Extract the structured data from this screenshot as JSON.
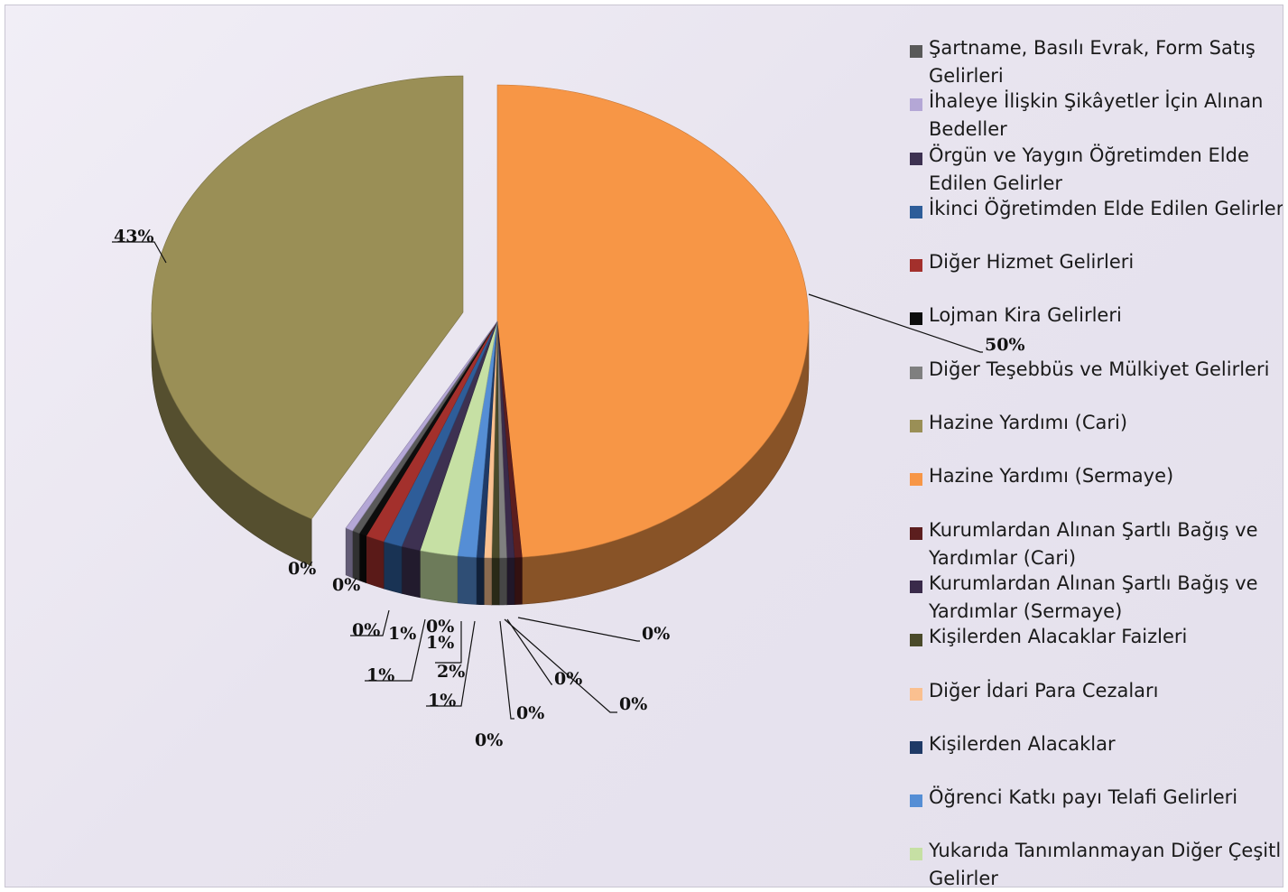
{
  "chart_data": {
    "type": "pie",
    "title": "",
    "legend_position": "right",
    "series": [
      {
        "name": "Şartname, Basılı Evrak, Form Satış Gelirleri",
        "value": 0,
        "label": "0%",
        "color": "#595959"
      },
      {
        "name": "İhaleye İlişkin Şikâyetler İçin Alınan Bedeller",
        "value": 0,
        "label": "0%",
        "color": "#b4a7d6"
      },
      {
        "name": "Örgün ve Yaygın Öğretimden Elde Edilen Gelirler",
        "value": 1,
        "label": "1%",
        "color": "#3d3151"
      },
      {
        "name": "İkinci Öğretimden Elde Edilen Gelirler",
        "value": 1,
        "label": "1%",
        "color": "#2e5d99"
      },
      {
        "name": "Diğer Hizmet Gelirleri",
        "value": 1,
        "label": "1%",
        "color": "#a3302c"
      },
      {
        "name": "Lojman Kira Gelirleri",
        "value": 0,
        "label": "0%",
        "color": "#0d0d0d"
      },
      {
        "name": "Diğer Teşebbüs ve Mülkiyet Gelirleri",
        "value": 0,
        "label": "0%",
        "color": "#7f7f7f"
      },
      {
        "name": "Hazine Yardımı (Cari)",
        "value": 43,
        "label": "43%",
        "color": "#9a8f56"
      },
      {
        "name": "Hazine Yardımı (Sermaye)",
        "value": 50,
        "label": "50%",
        "color": "#f79646"
      },
      {
        "name": "Kurumlardan Alınan Şartlı Bağış ve Yardımlar (Cari)",
        "value": 0,
        "label": "0%",
        "color": "#5c1e1e"
      },
      {
        "name": "Kurumlardan Alınan Şartlı Bağış ve Yardımlar (Sermaye)",
        "value": 0,
        "label": "0%",
        "color": "#3a2a4a"
      },
      {
        "name": "Kişilerden Alacaklar Faizleri",
        "value": 0,
        "label": "0%",
        "color": "#4a4a2a"
      },
      {
        "name": "Diğer İdari Para Cezaları",
        "value": 0,
        "label": "0%",
        "color": "#fac090"
      },
      {
        "name": "Kişilerden Alacaklar",
        "value": 0,
        "label": "0%",
        "color": "#1f3a66"
      },
      {
        "name": "Öğrenci Katkı payı Telafi Gelirleri",
        "value": 1,
        "label": "1%",
        "color": "#558ed5"
      },
      {
        "name": "Yukarıda Tanımlanmayan Diğer Çeşitli Gelirler",
        "value": 2,
        "label": "2%",
        "color": "#c6e0a4"
      }
    ]
  }
}
